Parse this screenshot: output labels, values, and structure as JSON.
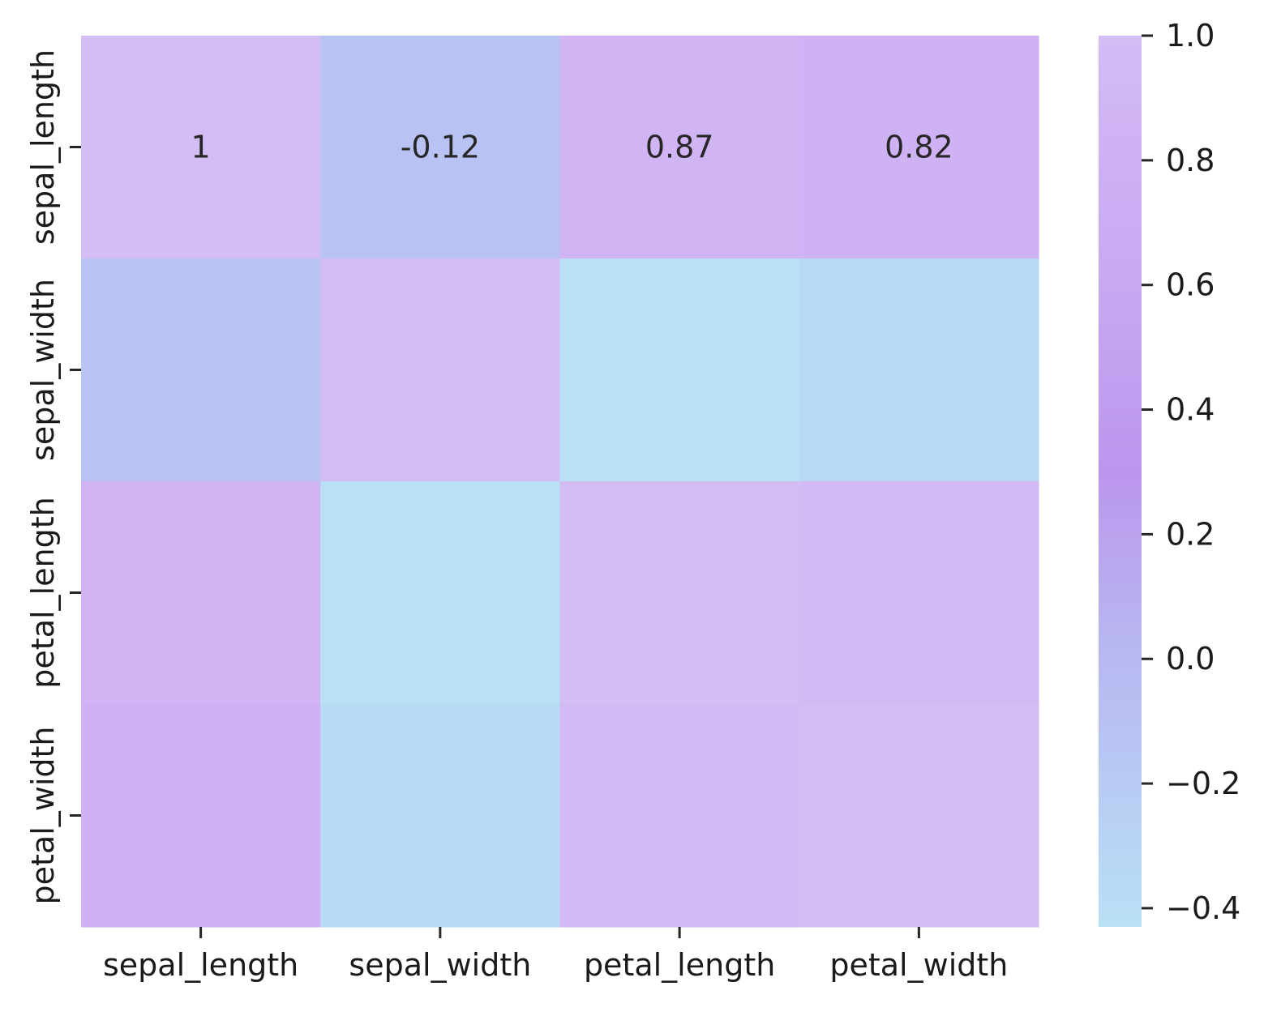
{
  "chart_data": {
    "type": "heatmap",
    "title": "",
    "xlabel": "",
    "ylabel": "",
    "x_categories": [
      "sepal_length",
      "sepal_width",
      "petal_length",
      "petal_width"
    ],
    "y_categories": [
      "sepal_length",
      "sepal_width",
      "petal_length",
      "petal_width"
    ],
    "values": [
      [
        1.0,
        -0.12,
        0.87,
        0.82
      ],
      [
        -0.12,
        1.0,
        -0.43,
        -0.37
      ],
      [
        0.87,
        -0.43,
        1.0,
        0.96
      ],
      [
        0.82,
        -0.37,
        0.96,
        1.0
      ]
    ],
    "annotations": [
      [
        "1",
        "-0.12",
        "0.87",
        "0.82"
      ],
      [
        "",
        "",
        "",
        ""
      ],
      [
        "",
        "",
        "",
        ""
      ],
      [
        "",
        "",
        "",
        ""
      ]
    ],
    "colorbar": {
      "range": [
        -0.43,
        1.0
      ],
      "ticks": [
        1.0,
        0.8,
        0.6,
        0.4,
        0.2,
        0.0,
        -0.2,
        -0.4
      ],
      "tick_labels": [
        "1.0",
        "0.8",
        "0.6",
        "0.4",
        "0.2",
        "0.0",
        "−0.2",
        "−0.4"
      ]
    },
    "colormap": [
      {
        "v": -0.43,
        "color": "#b9e0f4"
      },
      {
        "v": -0.15,
        "color": "#b8c6f3"
      },
      {
        "v": 0.05,
        "color": "#b8b4f0"
      },
      {
        "v": 0.3,
        "color": "#bb96ee"
      },
      {
        "v": 0.6,
        "color": "#c7a9f2"
      },
      {
        "v": 0.85,
        "color": "#cfb3f4"
      },
      {
        "v": 1.0,
        "color": "#d4bcf5"
      }
    ]
  }
}
